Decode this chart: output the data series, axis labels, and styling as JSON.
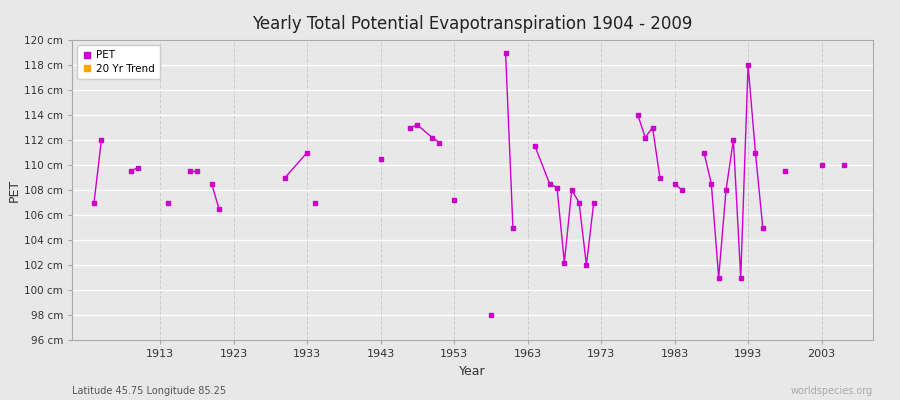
{
  "title": "Yearly Total Potential Evapotranspiration 1904 - 2009",
  "xlabel": "Year",
  "ylabel": "PET",
  "subtitle": "Latitude 45.75 Longitude 85.25",
  "watermark": "worldspecies.org",
  "ylim": [
    96,
    120
  ],
  "yticks": [
    96,
    98,
    100,
    102,
    104,
    106,
    108,
    110,
    112,
    114,
    116,
    118,
    120
  ],
  "ytick_labels": [
    "96 cm",
    "98 cm",
    "100 cm",
    "102 cm",
    "104 cm",
    "106 cm",
    "108 cm",
    "110 cm",
    "112 cm",
    "114 cm",
    "116 cm",
    "118 cm",
    "120 cm"
  ],
  "pet_color": "#CC00CC",
  "trend_color": "#FFA500",
  "bg_color": "#E8E8E8",
  "plot_bg_color": "#E8E8E8",
  "grid_color_h": "#FFFFFF",
  "grid_color_v": "#CCCCCC",
  "connected_segments": [
    [
      [
        1904,
        107.0
      ],
      [
        1905,
        112.0
      ]
    ],
    [
      [
        1909,
        109.5
      ],
      [
        1910,
        109.8
      ]
    ],
    [
      [
        1917,
        109.5
      ],
      [
        1918,
        109.5
      ]
    ],
    [
      [
        1920,
        108.5
      ],
      [
        1921,
        106.5
      ]
    ],
    [
      [
        1930,
        109.0
      ],
      [
        1933,
        111.0
      ]
    ],
    [
      [
        1947,
        113.0
      ],
      [
        1948,
        113.2
      ],
      [
        1950,
        112.2
      ],
      [
        1951,
        111.8
      ]
    ],
    [
      [
        1960,
        119.0
      ],
      [
        1961,
        105.0
      ]
    ],
    [
      [
        1964,
        111.5
      ],
      [
        1966,
        108.5
      ],
      [
        1967,
        108.2
      ],
      [
        1968,
        102.2
      ],
      [
        1969,
        108.0
      ],
      [
        1970,
        107.0
      ],
      [
        1971,
        102.0
      ],
      [
        1972,
        107.0
      ]
    ],
    [
      [
        1978,
        114.0
      ],
      [
        1979,
        112.2
      ],
      [
        1980,
        113.0
      ],
      [
        1981,
        109.0
      ]
    ],
    [
      [
        1983,
        108.5
      ],
      [
        1984,
        108.0
      ]
    ],
    [
      [
        1987,
        111.0
      ],
      [
        1988,
        108.5
      ],
      [
        1989,
        101.0
      ],
      [
        1990,
        108.0
      ],
      [
        1991,
        112.0
      ],
      [
        1992,
        101.0
      ],
      [
        1993,
        118.0
      ],
      [
        1994,
        111.0
      ],
      [
        1995,
        105.0
      ]
    ]
  ],
  "isolated_points": [
    [
      1914,
      107.0
    ],
    [
      1934,
      107.0
    ],
    [
      1943,
      110.5
    ],
    [
      1953,
      107.2
    ],
    [
      1958,
      98.0
    ],
    [
      1998,
      109.5
    ],
    [
      2003,
      110.0
    ],
    [
      2006,
      110.0
    ]
  ],
  "xlim": [
    1901,
    2010
  ],
  "xticks": [
    1913,
    1923,
    1933,
    1943,
    1953,
    1963,
    1973,
    1983,
    1993,
    2003
  ]
}
